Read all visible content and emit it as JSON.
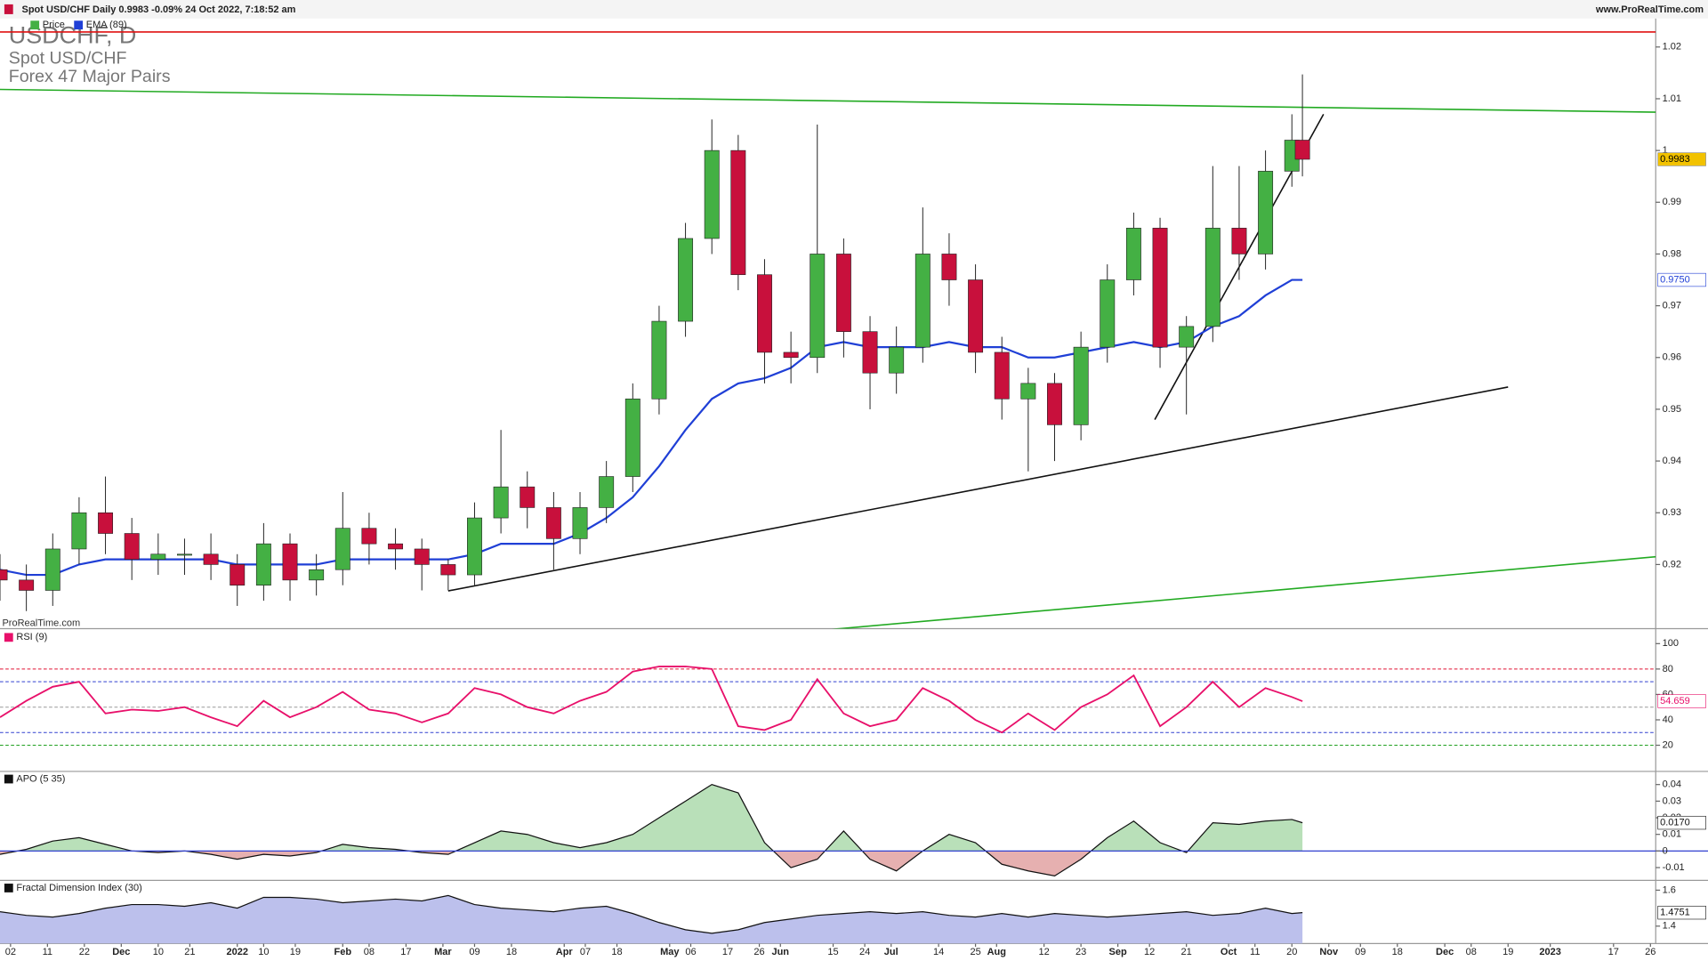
{
  "header": {
    "info": "Spot USD/CHF Daily 0.9983 -0.09% 24 Oct 2022, 7:18:52 am",
    "site": "www.ProRealTime.com"
  },
  "chart_data": [
    {
      "type": "candlestick",
      "title": "USDCHF, D",
      "subtitle": [
        "Spot USD/CHF",
        "Forex 47 Major Pairs"
      ],
      "watermark": "ProRealTime.com",
      "name": "Price",
      "up_color": "#44b044",
      "down_color": "#c8103c",
      "x": [
        0,
        5,
        10,
        15,
        20,
        25,
        30,
        35,
        40,
        45,
        50,
        55,
        60,
        65,
        70,
        75,
        80,
        85,
        90,
        95,
        100,
        105,
        110,
        115,
        120,
        125,
        130,
        135,
        140,
        145,
        150,
        155,
        160,
        165,
        170,
        175,
        180,
        185,
        190,
        195,
        200,
        205,
        210,
        215,
        220,
        225,
        230,
        235,
        240,
        245,
        247
      ],
      "open": [
        0.919,
        0.917,
        0.915,
        0.923,
        0.93,
        0.926,
        0.921,
        0.922,
        0.922,
        0.92,
        0.916,
        0.924,
        0.917,
        0.919,
        0.927,
        0.924,
        0.923,
        0.92,
        0.918,
        0.929,
        0.935,
        0.931,
        0.925,
        0.931,
        0.937,
        0.952,
        0.967,
        0.983,
        1.0,
        0.976,
        0.961,
        0.96,
        0.98,
        0.965,
        0.957,
        0.962,
        0.98,
        0.975,
        0.961,
        0.952,
        0.955,
        0.947,
        0.962,
        0.975,
        0.985,
        0.962,
        0.966,
        0.985,
        0.98,
        0.996,
        1.002
      ],
      "high": [
        0.922,
        0.92,
        0.926,
        0.933,
        0.937,
        0.929,
        0.926,
        0.925,
        0.926,
        0.922,
        0.928,
        0.926,
        0.922,
        0.934,
        0.93,
        0.927,
        0.925,
        0.921,
        0.932,
        0.946,
        0.938,
        0.934,
        0.934,
        0.94,
        0.955,
        0.97,
        0.986,
        1.006,
        1.003,
        0.979,
        0.965,
        1.005,
        0.983,
        0.968,
        0.966,
        0.989,
        0.984,
        0.978,
        0.964,
        0.958,
        0.957,
        0.965,
        0.978,
        0.988,
        0.987,
        0.968,
        0.997,
        0.997,
        1.0,
        1.007,
        1.0147
      ],
      "low": [
        0.913,
        0.911,
        0.912,
        0.92,
        0.922,
        0.917,
        0.918,
        0.918,
        0.917,
        0.912,
        0.913,
        0.913,
        0.914,
        0.916,
        0.92,
        0.919,
        0.915,
        0.915,
        0.916,
        0.926,
        0.927,
        0.919,
        0.922,
        0.928,
        0.934,
        0.949,
        0.964,
        0.98,
        0.973,
        0.955,
        0.955,
        0.957,
        0.96,
        0.95,
        0.953,
        0.959,
        0.97,
        0.957,
        0.948,
        0.938,
        0.94,
        0.944,
        0.959,
        0.972,
        0.958,
        0.949,
        0.963,
        0.975,
        0.977,
        0.993,
        0.995
      ],
      "close": [
        0.917,
        0.915,
        0.923,
        0.93,
        0.926,
        0.921,
        0.922,
        0.922,
        0.92,
        0.916,
        0.924,
        0.917,
        0.919,
        0.927,
        0.924,
        0.923,
        0.92,
        0.918,
        0.929,
        0.935,
        0.931,
        0.925,
        0.931,
        0.937,
        0.952,
        0.967,
        0.983,
        1.0,
        0.976,
        0.961,
        0.96,
        0.98,
        0.965,
        0.957,
        0.962,
        0.98,
        0.975,
        0.961,
        0.952,
        0.955,
        0.947,
        0.962,
        0.975,
        0.985,
        0.962,
        0.966,
        0.985,
        0.98,
        0.996,
        1.002,
        0.9983
      ],
      "ema": {
        "name": "EMA (89)",
        "color": "#1f3fd6",
        "values": [
          0.919,
          0.918,
          0.918,
          0.92,
          0.921,
          0.921,
          0.921,
          0.921,
          0.921,
          0.92,
          0.92,
          0.92,
          0.92,
          0.921,
          0.921,
          0.921,
          0.921,
          0.921,
          0.922,
          0.924,
          0.924,
          0.924,
          0.926,
          0.929,
          0.933,
          0.939,
          0.946,
          0.952,
          0.955,
          0.956,
          0.958,
          0.962,
          0.963,
          0.962,
          0.962,
          0.962,
          0.963,
          0.962,
          0.962,
          0.96,
          0.96,
          0.961,
          0.962,
          0.963,
          0.962,
          0.963,
          0.966,
          0.968,
          0.972,
          0.975,
          0.975
        ]
      },
      "trendlines": [
        {
          "color": "#e01010",
          "x": [
            0,
            314
          ],
          "y": [
            1.0229,
            1.0229
          ]
        },
        {
          "color": "#22aa22",
          "x": [
            0,
            314
          ],
          "y": [
            1.0118,
            1.0074
          ]
        },
        {
          "color": "#22aa22",
          "x": [
            157,
            314
          ],
          "y": [
            0.9074,
            0.9215
          ]
        },
        {
          "color": "#111111",
          "x": [
            85,
            286
          ],
          "y": [
            0.9149,
            0.9543
          ]
        },
        {
          "color": "#111111",
          "x": [
            219,
            251
          ],
          "y": [
            0.948,
            1.007
          ]
        }
      ],
      "tags": [
        {
          "value": 0.9983,
          "color": "#f2c200"
        },
        {
          "value": 0.975,
          "label": "0.9750",
          "color": "#ffffff",
          "text_color": "#1f3fd6"
        }
      ],
      "xlim": [
        0,
        314
      ],
      "ylim": [
        0.9076,
        1.0255
      ],
      "yticks": [
        1.02,
        1.01,
        1,
        0.99,
        0.98,
        0.97,
        0.96,
        0.95,
        0.94,
        0.93,
        0.92
      ],
      "xticks": [
        {
          "value": 2,
          "label": "02"
        },
        {
          "value": 9,
          "label": "11"
        },
        {
          "value": 16,
          "label": "22"
        },
        {
          "value": 23,
          "label": "Dec"
        },
        {
          "value": 30,
          "label": "10"
        },
        {
          "value": 36,
          "label": "21"
        },
        {
          "value": 45,
          "label": "2022"
        },
        {
          "value": 50,
          "label": "10"
        },
        {
          "value": 56,
          "label": "19"
        },
        {
          "value": 65,
          "label": "Feb"
        },
        {
          "value": 70,
          "label": "08"
        },
        {
          "value": 77,
          "label": "17"
        },
        {
          "value": 84,
          "label": "Mar"
        },
        {
          "value": 90,
          "label": "09"
        },
        {
          "value": 97,
          "label": "18"
        },
        {
          "value": 107,
          "label": "Apr"
        },
        {
          "value": 111,
          "label": "07"
        },
        {
          "value": 117,
          "label": "18"
        },
        {
          "value": 127,
          "label": "May"
        },
        {
          "value": 131,
          "label": "06"
        },
        {
          "value": 138,
          "label": "17"
        },
        {
          "value": 144,
          "label": "26"
        },
        {
          "value": 148,
          "label": "Jun"
        },
        {
          "value": 158,
          "label": "15"
        },
        {
          "value": 164,
          "label": "24"
        },
        {
          "value": 169,
          "label": "Jul"
        },
        {
          "value": 178,
          "label": "14"
        },
        {
          "value": 185,
          "label": "25"
        },
        {
          "value": 189,
          "label": "Aug"
        },
        {
          "value": 198,
          "label": "12"
        },
        {
          "value": 205,
          "label": "23"
        },
        {
          "value": 212,
          "label": "Sep"
        },
        {
          "value": 218,
          "label": "12"
        },
        {
          "value": 225,
          "label": "21"
        },
        {
          "value": 233,
          "label": "Oct"
        },
        {
          "value": 238,
          "label": "11"
        },
        {
          "value": 245,
          "label": "20"
        },
        {
          "value": 252,
          "label": "Nov"
        },
        {
          "value": 258,
          "label": "09"
        },
        {
          "value": 265,
          "label": "18"
        },
        {
          "value": 274,
          "label": "Dec"
        },
        {
          "value": 279,
          "label": "08"
        },
        {
          "value": 286,
          "label": "19"
        },
        {
          "value": 294,
          "label": "2023"
        },
        {
          "value": 306,
          "label": "17"
        },
        {
          "value": 313,
          "label": "26"
        }
      ]
    },
    {
      "type": "line",
      "name": "RSI (9)",
      "color": "#e8106a",
      "values": [
        42,
        55,
        66,
        70,
        45,
        48,
        47,
        50,
        42,
        35,
        55,
        42,
        50,
        62,
        48,
        45,
        38,
        45,
        65,
        60,
        50,
        45,
        55,
        62,
        78,
        82,
        82,
        80,
        35,
        32,
        40,
        72,
        45,
        35,
        40,
        65,
        55,
        40,
        30,
        45,
        32,
        50,
        60,
        75,
        35,
        50,
        70,
        50,
        65,
        58,
        54.659
      ],
      "levels": [
        {
          "value": 80,
          "color": "#e01030"
        },
        {
          "value": 70,
          "color": "#3040d0"
        },
        {
          "value": 50,
          "color": "#999999"
        },
        {
          "value": 30,
          "color": "#3040d0"
        },
        {
          "value": 20,
          "color": "#20a020"
        }
      ],
      "tags": [
        {
          "value": 54.659,
          "color": "#ffffff",
          "text_color": "#e8106a"
        }
      ],
      "ylim": [
        -0.6,
        110.9
      ],
      "yticks": [
        100,
        80,
        60,
        40,
        20
      ]
    },
    {
      "type": "area",
      "name": "APO (5 35)",
      "color": "#111111",
      "up_fill": "#b9e0b9",
      "down_fill": "#e6b0b0",
      "zero_color": "#3040d0",
      "values": [
        -0.002,
        0.001,
        0.006,
        0.008,
        0.004,
        0,
        -0.001,
        0,
        -0.002,
        -0.005,
        -0.002,
        -0.003,
        -0.001,
        0.004,
        0.002,
        0.001,
        -0.001,
        -0.002,
        0.005,
        0.012,
        0.01,
        0.005,
        0.002,
        0.005,
        0.01,
        0.02,
        0.03,
        0.04,
        0.035,
        0.005,
        -0.01,
        -0.005,
        0.012,
        -0.005,
        -0.012,
        0,
        0.01,
        0.005,
        -0.008,
        -0.012,
        -0.015,
        -0.005,
        0.008,
        0.018,
        0.005,
        -0.001,
        0.017,
        0.016,
        0.018,
        0.019,
        0.017
      ],
      "tags": [
        {
          "value": 0.017,
          "label": "0.0170",
          "color": "#ffffff",
          "text_color": "#111111"
        }
      ],
      "ylim": [
        -0.0177,
        0.0479
      ],
      "yticks": [
        0.04,
        0.03,
        0.02,
        0.01,
        0,
        -0.01
      ]
    },
    {
      "type": "area",
      "name": "Fractal Dimension Index (30)",
      "color": "#111111",
      "up_fill": "#bcc0ec",
      "down_fill": "#bcc0ec",
      "values": [
        1.48,
        1.46,
        1.45,
        1.47,
        1.5,
        1.52,
        1.52,
        1.51,
        1.53,
        1.5,
        1.56,
        1.56,
        1.55,
        1.53,
        1.54,
        1.55,
        1.54,
        1.57,
        1.52,
        1.5,
        1.49,
        1.48,
        1.5,
        1.51,
        1.47,
        1.42,
        1.38,
        1.36,
        1.38,
        1.42,
        1.44,
        1.46,
        1.47,
        1.48,
        1.47,
        1.48,
        1.46,
        1.45,
        1.47,
        1.45,
        1.47,
        1.46,
        1.45,
        1.46,
        1.47,
        1.48,
        1.46,
        1.47,
        1.5,
        1.47,
        1.4751
      ],
      "tags": [
        {
          "value": 1.4751,
          "color": "#ffffff",
          "text_color": "#111111"
        }
      ],
      "ylim": [
        1.303,
        1.6545
      ],
      "yticks": [
        1.6,
        1.4
      ]
    }
  ]
}
